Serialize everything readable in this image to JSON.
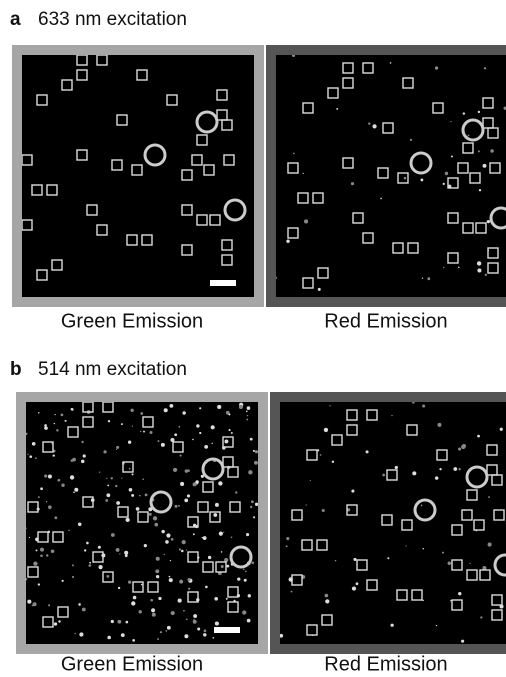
{
  "panels": [
    {
      "label": "a",
      "title": "633 nm excitation",
      "images": [
        {
          "caption": "Green Emission"
        },
        {
          "caption": "Red Emission"
        }
      ]
    },
    {
      "label": "b",
      "title": "514 nm excitation",
      "images": [
        {
          "caption": "Green Emission"
        },
        {
          "caption": "Red Emission"
        }
      ]
    }
  ]
}
